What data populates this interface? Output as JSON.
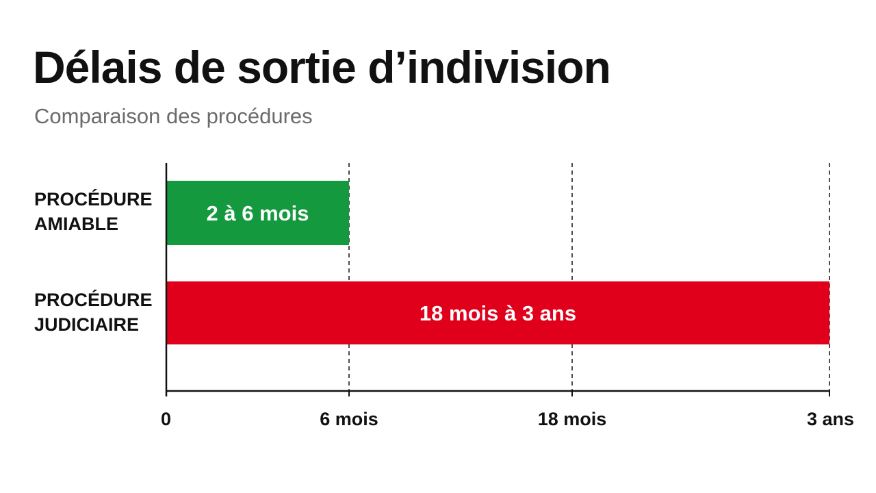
{
  "chart_data": {
    "type": "bar",
    "orientation": "horizontal",
    "title": "Délais de sortie d’indivision",
    "subtitle": "Comparaison des procédures",
    "categories": [
      {
        "lines": [
          "PROCÉDURE",
          "AMIABLE"
        ]
      },
      {
        "lines": [
          "PROCÉDURE",
          "JUDICIAIRE"
        ]
      }
    ],
    "bars": [
      {
        "start_months": 0,
        "end_months": 6,
        "label": "2 à 6 mois",
        "color": "#14993e"
      },
      {
        "start_months": 0,
        "end_months": 36,
        "label": "18 mois à 3 ans",
        "color": "#e0001b"
      }
    ],
    "x_ticks": [
      {
        "value": 0,
        "label": "0"
      },
      {
        "value": 6,
        "label": "6 mois"
      },
      {
        "value": 18,
        "label": "18 mois"
      },
      {
        "value": 36,
        "label": "3 ans"
      }
    ],
    "x_scale": "categorical-spacing",
    "grid": "dashed vertical at ticks",
    "text_color": "#111111",
    "subtitle_color": "#6b6b6b",
    "axis_color": "#111111"
  }
}
